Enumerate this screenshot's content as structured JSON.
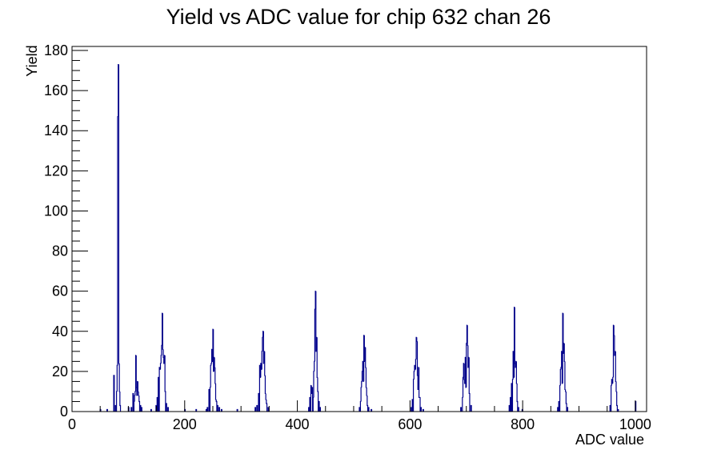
{
  "chart_data": {
    "type": "histogram",
    "title": "Yield vs ADC value for chip 632 chan 26",
    "xlabel": "ADC value",
    "ylabel": "Yield",
    "xlim": [
      0,
      1020
    ],
    "ylim": [
      0,
      182
    ],
    "xticks": [
      0,
      200,
      400,
      600,
      800,
      1000
    ],
    "yticks": [
      0,
      20,
      40,
      60,
      80,
      100,
      120,
      140,
      160,
      180
    ],
    "bin_width": 1,
    "line_color": "#00008b",
    "grid": false,
    "legend": "none",
    "bins": [
      [
        50,
        1
      ],
      [
        62,
        1
      ],
      [
        74,
        18
      ],
      [
        77,
        3
      ],
      [
        79,
        10
      ],
      [
        80,
        23
      ],
      [
        81,
        147
      ],
      [
        82,
        173
      ],
      [
        83,
        24
      ],
      [
        84,
        10
      ],
      [
        85,
        3
      ],
      [
        100,
        2
      ],
      [
        105,
        2
      ],
      [
        108,
        9
      ],
      [
        110,
        5
      ],
      [
        111,
        8
      ],
      [
        112,
        10
      ],
      [
        113,
        28
      ],
      [
        114,
        12
      ],
      [
        115,
        8
      ],
      [
        116,
        15
      ],
      [
        117,
        10
      ],
      [
        118,
        8
      ],
      [
        119,
        5
      ],
      [
        121,
        3
      ],
      [
        123,
        2
      ],
      [
        140,
        1
      ],
      [
        149,
        3
      ],
      [
        151,
        7
      ],
      [
        153,
        17
      ],
      [
        155,
        22
      ],
      [
        156,
        21
      ],
      [
        157,
        24
      ],
      [
        158,
        28
      ],
      [
        159,
        33
      ],
      [
        160,
        49
      ],
      [
        161,
        31
      ],
      [
        162,
        27
      ],
      [
        163,
        24
      ],
      [
        164,
        28
      ],
      [
        165,
        10
      ],
      [
        167,
        4
      ],
      [
        170,
        2
      ],
      [
        200,
        1
      ],
      [
        220,
        1
      ],
      [
        238,
        1
      ],
      [
        240,
        2
      ],
      [
        243,
        11
      ],
      [
        245,
        12
      ],
      [
        246,
        23
      ],
      [
        247,
        24
      ],
      [
        248,
        31
      ],
      [
        249,
        25
      ],
      [
        250,
        41
      ],
      [
        251,
        20
      ],
      [
        252,
        27
      ],
      [
        253,
        22
      ],
      [
        254,
        14
      ],
      [
        255,
        6
      ],
      [
        256,
        5
      ],
      [
        258,
        3
      ],
      [
        261,
        2
      ],
      [
        265,
        1
      ],
      [
        293,
        1
      ],
      [
        325,
        2
      ],
      [
        328,
        3
      ],
      [
        331,
        9
      ],
      [
        333,
        23
      ],
      [
        334,
        17
      ],
      [
        335,
        24
      ],
      [
        336,
        21
      ],
      [
        337,
        30
      ],
      [
        338,
        37
      ],
      [
        339,
        40
      ],
      [
        340,
        24
      ],
      [
        341,
        30
      ],
      [
        342,
        18
      ],
      [
        343,
        9
      ],
      [
        344,
        6
      ],
      [
        345,
        4
      ],
      [
        348,
        2
      ],
      [
        420,
        2
      ],
      [
        422,
        7
      ],
      [
        424,
        13
      ],
      [
        425,
        9
      ],
      [
        426,
        12
      ],
      [
        428,
        7
      ],
      [
        429,
        20
      ],
      [
        430,
        25
      ],
      [
        431,
        51
      ],
      [
        432,
        60
      ],
      [
        433,
        30
      ],
      [
        434,
        37
      ],
      [
        435,
        17
      ],
      [
        436,
        10
      ],
      [
        438,
        5
      ],
      [
        440,
        2
      ],
      [
        510,
        2
      ],
      [
        512,
        5
      ],
      [
        513,
        12
      ],
      [
        514,
        15
      ],
      [
        515,
        20
      ],
      [
        516,
        25
      ],
      [
        517,
        15
      ],
      [
        518,
        38
      ],
      [
        519,
        25
      ],
      [
        520,
        32
      ],
      [
        521,
        22
      ],
      [
        522,
        12
      ],
      [
        523,
        8
      ],
      [
        524,
        3
      ],
      [
        526,
        2
      ],
      [
        531,
        1
      ],
      [
        602,
        2
      ],
      [
        604,
        6
      ],
      [
        606,
        16
      ],
      [
        607,
        20
      ],
      [
        608,
        23
      ],
      [
        609,
        21
      ],
      [
        610,
        26
      ],
      [
        611,
        37
      ],
      [
        612,
        35
      ],
      [
        613,
        18
      ],
      [
        614,
        11
      ],
      [
        615,
        22
      ],
      [
        616,
        7
      ],
      [
        617,
        7
      ],
      [
        619,
        2
      ],
      [
        623,
        1
      ],
      [
        690,
        2
      ],
      [
        693,
        7
      ],
      [
        694,
        17
      ],
      [
        695,
        24
      ],
      [
        696,
        16
      ],
      [
        697,
        14
      ],
      [
        698,
        27
      ],
      [
        699,
        12
      ],
      [
        700,
        34
      ],
      [
        701,
        43
      ],
      [
        702,
        33
      ],
      [
        703,
        22
      ],
      [
        704,
        27
      ],
      [
        705,
        9
      ],
      [
        708,
        3
      ],
      [
        776,
        3
      ],
      [
        778,
        7
      ],
      [
        780,
        14
      ],
      [
        782,
        16
      ],
      [
        783,
        30
      ],
      [
        784,
        17
      ],
      [
        785,
        52
      ],
      [
        786,
        24
      ],
      [
        787,
        22
      ],
      [
        788,
        25
      ],
      [
        789,
        14
      ],
      [
        790,
        5
      ],
      [
        792,
        2
      ],
      [
        799,
        1
      ],
      [
        862,
        2
      ],
      [
        864,
        5
      ],
      [
        866,
        13
      ],
      [
        867,
        21
      ],
      [
        868,
        22
      ],
      [
        869,
        30
      ],
      [
        870,
        14
      ],
      [
        871,
        49
      ],
      [
        872,
        29
      ],
      [
        873,
        34
      ],
      [
        874,
        25
      ],
      [
        875,
        11
      ],
      [
        876,
        10
      ],
      [
        877,
        4
      ],
      [
        879,
        2
      ],
      [
        955,
        3
      ],
      [
        957,
        13
      ],
      [
        958,
        16
      ],
      [
        959,
        14
      ],
      [
        960,
        17
      ],
      [
        961,
        43
      ],
      [
        962,
        38
      ],
      [
        963,
        28
      ],
      [
        964,
        30
      ],
      [
        965,
        15
      ],
      [
        966,
        10
      ],
      [
        967,
        3
      ],
      [
        969,
        1
      ],
      [
        1000,
        5
      ]
    ]
  }
}
